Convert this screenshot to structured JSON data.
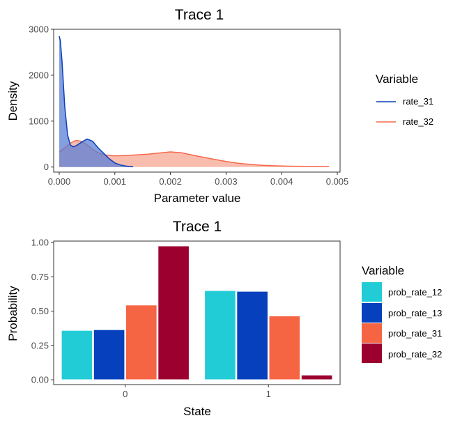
{
  "chart_data": [
    {
      "type": "area",
      "title": "Trace 1",
      "xlabel": "Parameter value",
      "ylabel": "Density",
      "xlim": [
        -0.0001,
        0.00505
      ],
      "ylim": [
        -110,
        3000
      ],
      "xticks": [
        0,
        0.001,
        0.002,
        0.003,
        0.004,
        0.005
      ],
      "xtick_labels": [
        "0.000",
        "0.001",
        "0.002",
        "0.003",
        "0.004",
        "0.005"
      ],
      "yticks": [
        0,
        1000,
        2000,
        3000
      ],
      "ytick_labels": [
        "0",
        "1000",
        "2000",
        "3000"
      ],
      "grid": false,
      "legend": {
        "title": "Variable",
        "placement": "right",
        "entries": [
          "rate_31",
          "rate_32"
        ]
      },
      "series": [
        {
          "name": "rate_31",
          "line_color": "#0a3fb8",
          "fill_color": "#5b7fd6",
          "x": [
            0,
            2e-05,
            5e-05,
            0.0001,
            0.00015,
            0.0002,
            0.00025,
            0.0003,
            0.0004,
            0.0005,
            0.0006,
            0.0007,
            0.0008,
            0.0009,
            0.001,
            0.0011,
            0.0012,
            0.00133
          ],
          "values": [
            2850,
            2750,
            2300,
            1300,
            700,
            480,
            440,
            460,
            540,
            610,
            560,
            420,
            300,
            180,
            90,
            45,
            20,
            5
          ]
        },
        {
          "name": "rate_32",
          "line_color": "#f4694a",
          "fill_color": "#f7a793",
          "x": [
            0,
            0.0001,
            0.0002,
            0.0003,
            0.0004,
            0.0005,
            0.0006,
            0.0007,
            0.0008,
            0.0009,
            0.001,
            0.0012,
            0.0014,
            0.0016,
            0.0018,
            0.002,
            0.0022,
            0.0024,
            0.0026,
            0.0028,
            0.003,
            0.0032,
            0.0034,
            0.0036,
            0.0038,
            0.004,
            0.0042,
            0.0044,
            0.0046,
            0.00485
          ],
          "values": [
            330,
            420,
            520,
            580,
            560,
            480,
            390,
            310,
            270,
            250,
            245,
            250,
            265,
            280,
            305,
            330,
            310,
            260,
            210,
            165,
            120,
            85,
            60,
            42,
            30,
            22,
            18,
            15,
            12,
            10
          ]
        }
      ]
    },
    {
      "type": "bar",
      "title": "Trace 1",
      "xlabel": "State",
      "ylabel": "Probability",
      "categories": [
        "0",
        "1"
      ],
      "ylim": [
        -0.035,
        1.01
      ],
      "yticks": [
        0,
        0.25,
        0.5,
        0.75,
        1
      ],
      "ytick_labels": [
        "0.00",
        "0.25",
        "0.50",
        "0.75",
        "1.00"
      ],
      "grid": false,
      "legend": {
        "title": "Variable",
        "placement": "right",
        "entries": [
          "prob_rate_12",
          "prob_rate_13",
          "prob_rate_31",
          "prob_rate_32"
        ]
      },
      "series": [
        {
          "name": "prob_rate_12",
          "color": "#21ccd6",
          "values": [
            0.36,
            0.65
          ]
        },
        {
          "name": "prob_rate_13",
          "color": "#0640bd",
          "values": [
            0.365,
            0.645
          ]
        },
        {
          "name": "prob_rate_31",
          "color": "#f66543",
          "values": [
            0.545,
            0.465
          ]
        },
        {
          "name": "prob_rate_32",
          "color": "#9c002f",
          "values": [
            0.975,
            0.035
          ]
        }
      ]
    }
  ]
}
